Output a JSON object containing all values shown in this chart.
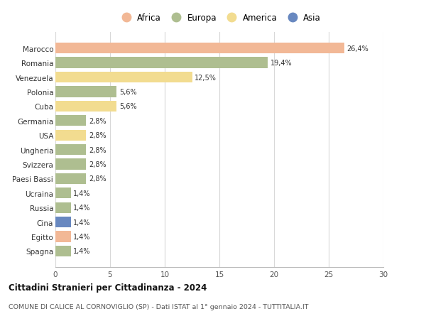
{
  "categories": [
    "Spagna",
    "Egitto",
    "Cina",
    "Russia",
    "Ucraina",
    "Paesi Bassi",
    "Svizzera",
    "Ungheria",
    "USA",
    "Germania",
    "Cuba",
    "Polonia",
    "Venezuela",
    "Romania",
    "Marocco"
  ],
  "values": [
    1.4,
    1.4,
    1.4,
    1.4,
    1.4,
    2.8,
    2.8,
    2.8,
    2.8,
    2.8,
    5.6,
    5.6,
    12.5,
    19.4,
    26.4
  ],
  "labels": [
    "1,4%",
    "1,4%",
    "1,4%",
    "1,4%",
    "1,4%",
    "2,8%",
    "2,8%",
    "2,8%",
    "2,8%",
    "2,8%",
    "5,6%",
    "5,6%",
    "12,5%",
    "19,4%",
    "26,4%"
  ],
  "continents": [
    "Europa",
    "Africa",
    "Asia",
    "Europa",
    "Europa",
    "Europa",
    "Europa",
    "Europa",
    "America",
    "Europa",
    "America",
    "Europa",
    "America",
    "Europa",
    "Africa"
  ],
  "colors": {
    "Africa": "#F2B896",
    "Europa": "#AEBE90",
    "America": "#F2DC90",
    "Asia": "#6888C0"
  },
  "legend_order": [
    "Africa",
    "Europa",
    "America",
    "Asia"
  ],
  "xlim": [
    0,
    30
  ],
  "xticks": [
    0,
    5,
    10,
    15,
    20,
    25,
    30
  ],
  "title": "Cittadini Stranieri per Cittadinanza - 2024",
  "subtitle": "COMUNE DI CALICE AL CORNOVIGLIO (SP) - Dati ISTAT al 1° gennaio 2024 - TUTTITALIA.IT",
  "background_color": "#ffffff",
  "grid_color": "#d8d8d8"
}
